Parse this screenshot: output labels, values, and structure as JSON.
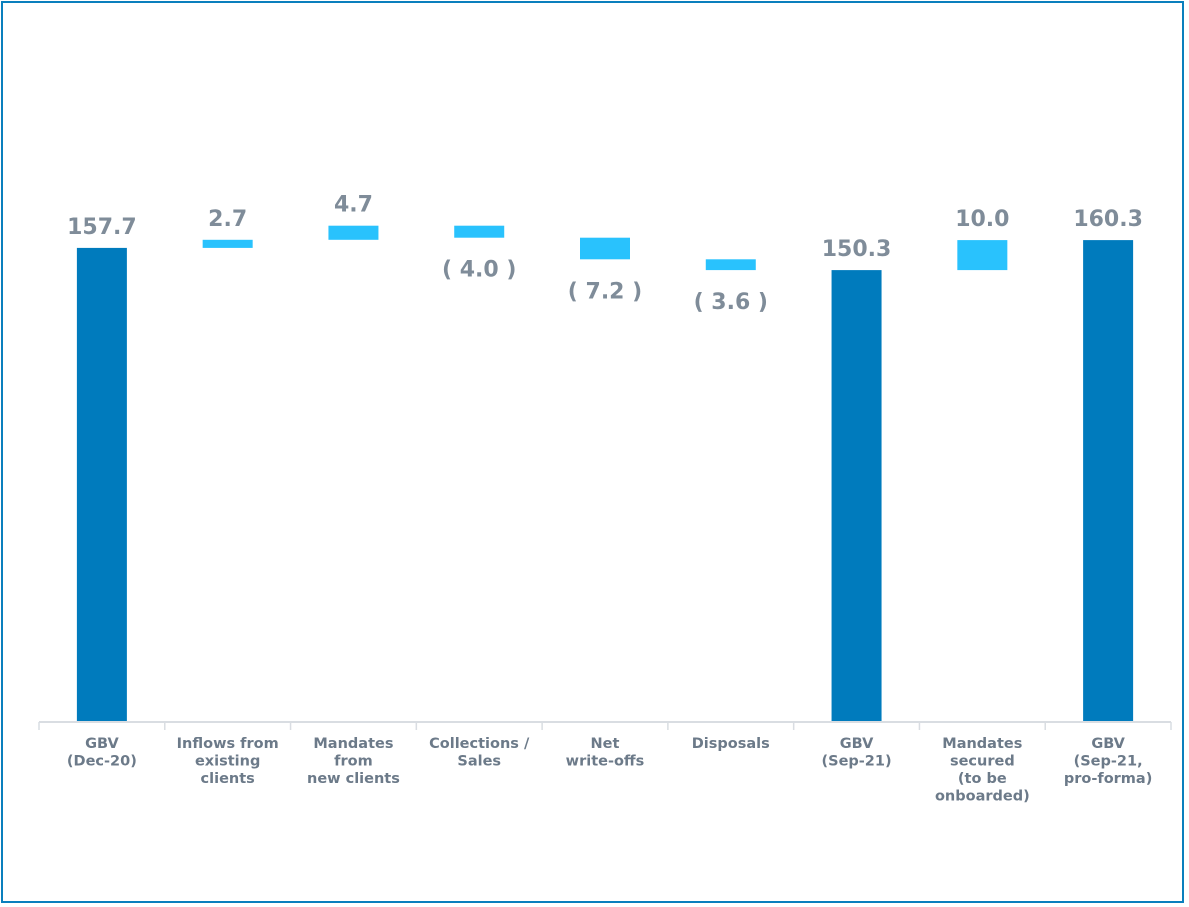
{
  "chart_data": {
    "type": "bar",
    "subtype": "waterfall",
    "title": "",
    "xlabel": "",
    "ylabel": "",
    "ylim": [
      0,
      165
    ],
    "grid": false,
    "categories": [
      [
        "GBV",
        "(Dec-20)"
      ],
      [
        "Inflows from",
        "existing",
        "clients"
      ],
      [
        "Mandates",
        "from",
        "new clients"
      ],
      [
        "Collections /",
        "Sales"
      ],
      [
        "Net",
        "write-offs"
      ],
      [
        "Disposals"
      ],
      [
        "GBV",
        "(Sep-21)"
      ],
      [
        "Mandates",
        "secured",
        "(to be",
        "onboarded)"
      ],
      [
        "GBV",
        "(Sep-21,",
        "pro-forma)"
      ]
    ],
    "bars": [
      {
        "kind": "total",
        "start": 0,
        "end": 157.7,
        "label": "157.7"
      },
      {
        "kind": "delta",
        "start": 157.7,
        "end": 160.4,
        "label": "2.7"
      },
      {
        "kind": "delta",
        "start": 160.4,
        "end": 165.1,
        "label": "4.7"
      },
      {
        "kind": "delta",
        "start": 165.1,
        "end": 161.1,
        "label": "( 4.0 )"
      },
      {
        "kind": "delta",
        "start": 161.1,
        "end": 153.9,
        "label": "( 7.2 )"
      },
      {
        "kind": "delta",
        "start": 153.9,
        "end": 150.3,
        "label": "( 3.6 )"
      },
      {
        "kind": "total",
        "start": 0,
        "end": 150.3,
        "label": "150.3"
      },
      {
        "kind": "delta",
        "start": 150.3,
        "end": 160.3,
        "label": "10.0"
      },
      {
        "kind": "total",
        "start": 0,
        "end": 160.3,
        "label": "160.3"
      }
    ],
    "colors": {
      "total": "#007bbd",
      "delta": "#29c2fd",
      "label": "#7f8c99",
      "axis": "#d9dde2"
    }
  }
}
